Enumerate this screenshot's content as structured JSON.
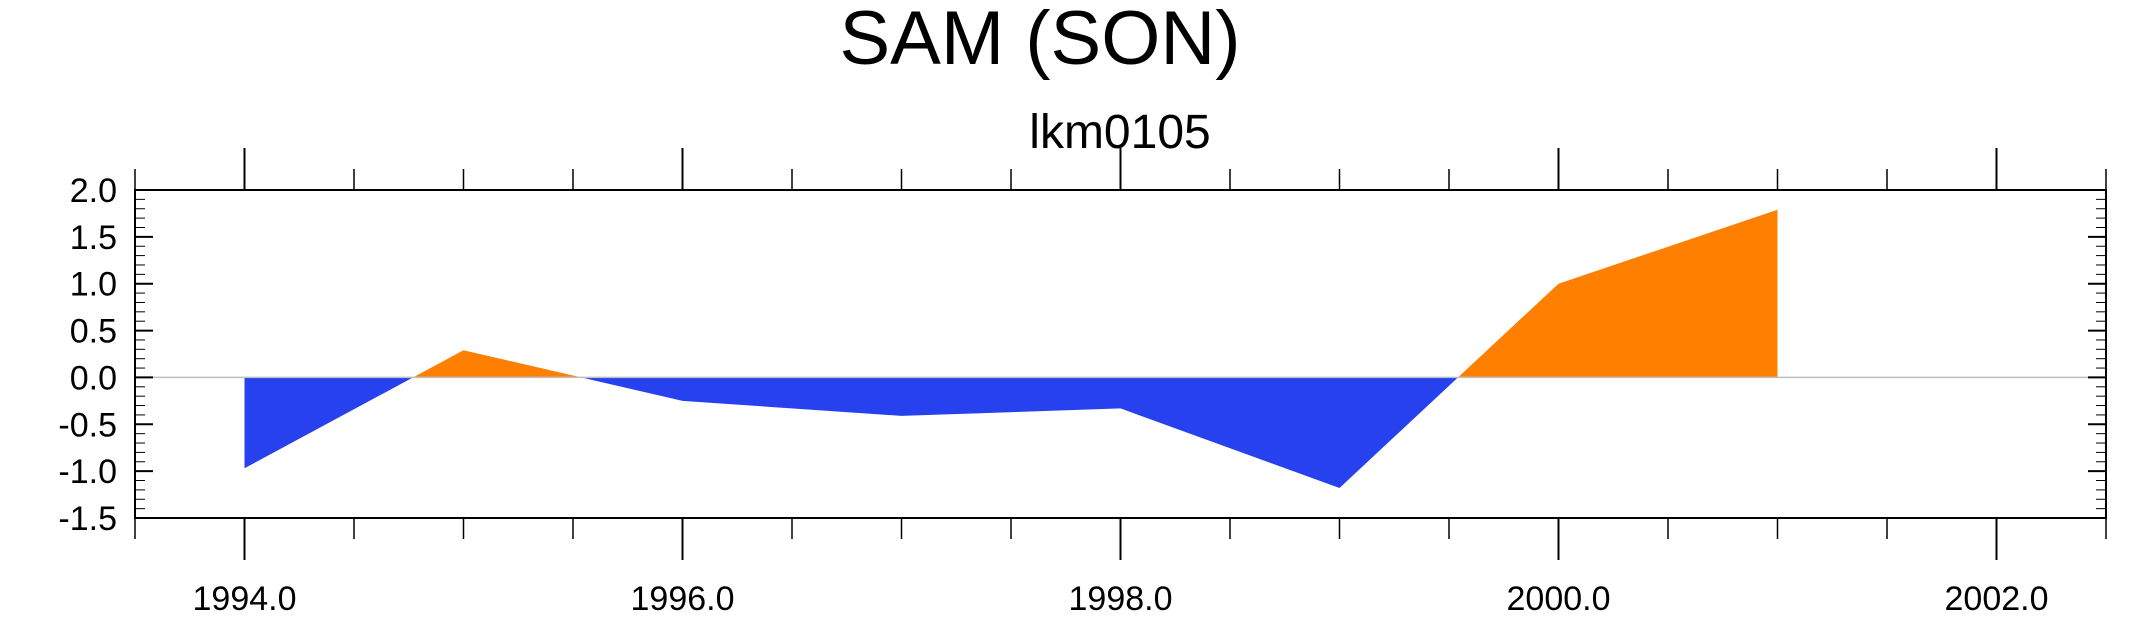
{
  "chart_data": {
    "type": "area",
    "title": "SAM (SON)",
    "subtitle": "lkm0105",
    "xlabel": "",
    "ylabel": "",
    "x": [
      1994,
      1995,
      1996,
      1997,
      1998,
      1999,
      2000,
      2001
    ],
    "values": [
      -0.97,
      0.29,
      -0.25,
      -0.41,
      -0.33,
      -1.18,
      1.0,
      1.79
    ],
    "xlim": [
      1993.5,
      2002.5
    ],
    "ylim": [
      -1.5,
      2.0
    ],
    "xticks": [
      1994,
      1996,
      1998,
      2000,
      2002
    ],
    "xtick_labels": [
      "1994.0",
      "1996.0",
      "1998.0",
      "2000.0",
      "2002.0"
    ],
    "yticks": [
      2.0,
      1.5,
      1.0,
      0.5,
      0.0,
      -0.5,
      -1.0,
      -1.5
    ],
    "ytick_labels": [
      "2.0",
      "1.5",
      "1.0",
      "0.5",
      "0.0",
      "-0.5",
      "-1.0",
      "-1.5"
    ],
    "baseline": 0.0,
    "colors": {
      "positive": "#ff8000",
      "negative": "#2741ee",
      "axis": "#000000",
      "zero_line": "#bfbfbf"
    },
    "grid": false,
    "legend": "none"
  }
}
